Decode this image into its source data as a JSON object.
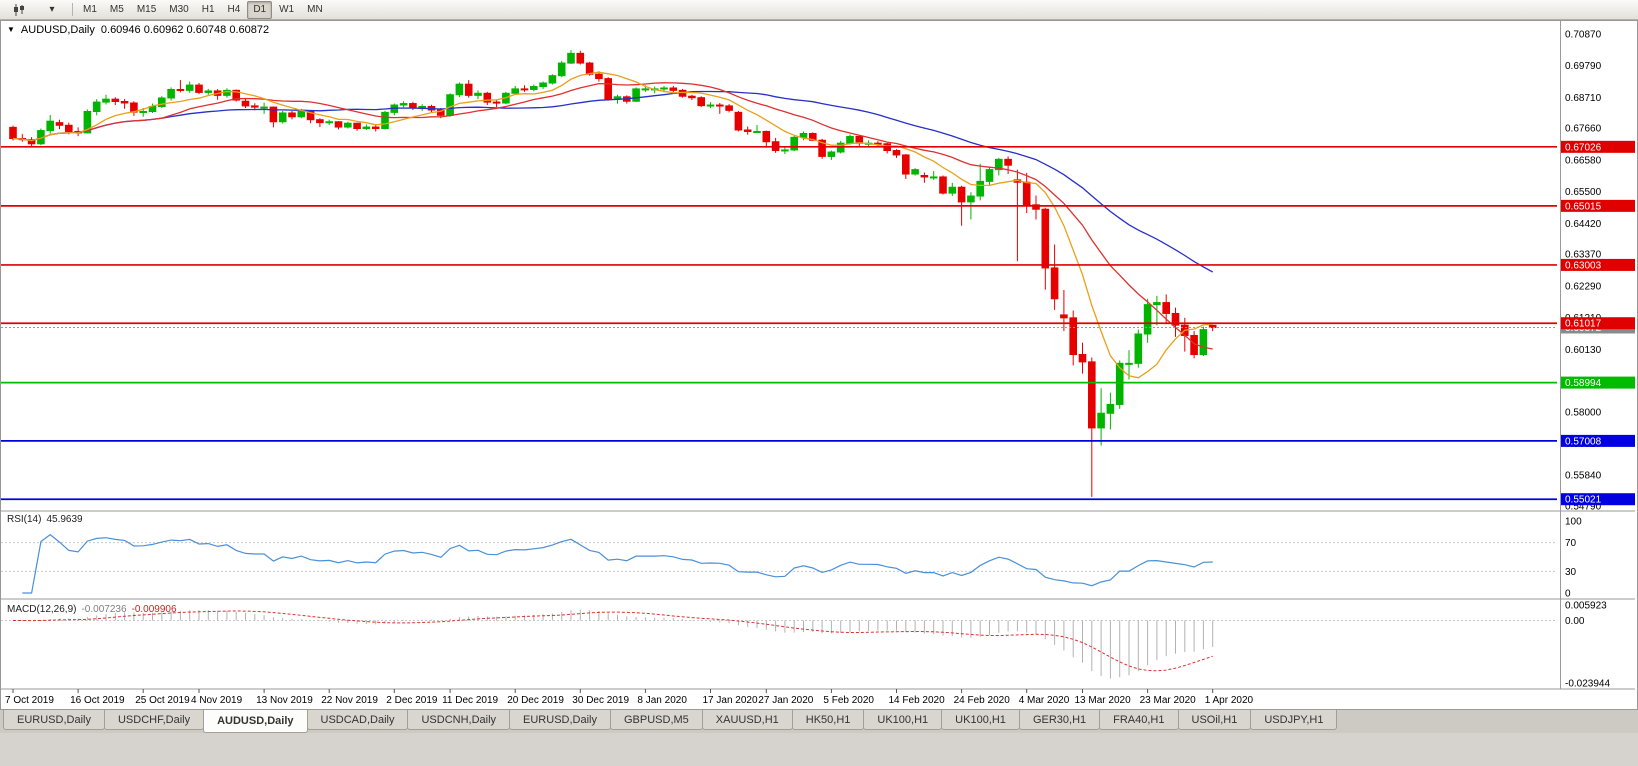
{
  "toolbar": {
    "timeframes": [
      "M1",
      "M5",
      "M15",
      "M30",
      "H1",
      "H4",
      "D1",
      "W1",
      "MN"
    ],
    "active_timeframe": "D1",
    "icons": {
      "chart_mode": "candlestick-chart-icon",
      "dropdown": "▾"
    }
  },
  "chart_title": {
    "dropdown_glyph": "▼",
    "symbol": "AUDUSD,Daily",
    "ohlc": "0.60946 0.60962 0.60748 0.60872"
  },
  "chart_data": {
    "type": "candlestick",
    "symbol": "AUDUSD",
    "timeframe": "Daily",
    "current_bar": {
      "open": "0.60946",
      "high": "0.60962",
      "low": "0.60748",
      "close": "0.60872"
    },
    "ylim": [
      0.5462,
      0.7138
    ],
    "grid": false,
    "y_axis_labels": [
      "0.70870",
      "0.69790",
      "0.68710",
      "0.67660",
      "0.66580",
      "0.65500",
      "0.64420",
      "0.63370",
      "0.62290",
      "0.61210",
      "0.60130",
      "0.59050",
      "0.58000",
      "0.56920",
      "0.55840",
      "0.54790"
    ],
    "x_labels": [
      {
        "text": "7 Oct 2019",
        "i": 0
      },
      {
        "text": "16 Oct 2019",
        "i": 7
      },
      {
        "text": "25 Oct 2019",
        "i": 14
      },
      {
        "text": "4 Nov 2019",
        "i": 20
      },
      {
        "text": "13 Nov 2019",
        "i": 27
      },
      {
        "text": "22 Nov 2019",
        "i": 34
      },
      {
        "text": "2 Dec 2019",
        "i": 41
      },
      {
        "text": "11 Dec 2019",
        "i": 47
      },
      {
        "text": "20 Dec 2019",
        "i": 54
      },
      {
        "text": "30 Dec 2019",
        "i": 61
      },
      {
        "text": "8 Jan 2020",
        "i": 68
      },
      {
        "text": "17 Jan 2020",
        "i": 75
      },
      {
        "text": "27 Jan 2020",
        "i": 81
      },
      {
        "text": "5 Feb 2020",
        "i": 88
      },
      {
        "text": "14 Feb 2020",
        "i": 95
      },
      {
        "text": "24 Feb 2020",
        "i": 102
      },
      {
        "text": "4 Mar 2020",
        "i": 109
      },
      {
        "text": "13 Mar 2020",
        "i": 115
      },
      {
        "text": "23 Mar 2020",
        "i": 122
      },
      {
        "text": "1 Apr 2020",
        "i": 129
      }
    ],
    "candles": [
      [
        0.6769,
        0.6775,
        0.6724,
        0.6731
      ],
      [
        0.6731,
        0.6746,
        0.672,
        0.6727
      ],
      [
        0.6727,
        0.6736,
        0.6704,
        0.6713
      ],
      [
        0.6713,
        0.6765,
        0.6708,
        0.6758
      ],
      [
        0.6758,
        0.6811,
        0.6747,
        0.679
      ],
      [
        0.6785,
        0.6795,
        0.6763,
        0.6776
      ],
      [
        0.6776,
        0.6785,
        0.6745,
        0.6755
      ],
      [
        0.6755,
        0.6769,
        0.6739,
        0.675
      ],
      [
        0.675,
        0.683,
        0.6748,
        0.6823
      ],
      [
        0.6823,
        0.6865,
        0.681,
        0.6855
      ],
      [
        0.6855,
        0.688,
        0.6847,
        0.6865
      ],
      [
        0.6865,
        0.6872,
        0.6845,
        0.6857
      ],
      [
        0.6857,
        0.6866,
        0.6832,
        0.6852
      ],
      [
        0.6852,
        0.6858,
        0.6808,
        0.6821
      ],
      [
        0.6821,
        0.6835,
        0.6805,
        0.6823
      ],
      [
        0.6823,
        0.685,
        0.6818,
        0.684
      ],
      [
        0.684,
        0.6875,
        0.6835,
        0.6869
      ],
      [
        0.6869,
        0.6905,
        0.686,
        0.6898
      ],
      [
        0.6898,
        0.693,
        0.6888,
        0.6895
      ],
      [
        0.6895,
        0.6925,
        0.6887,
        0.6913
      ],
      [
        0.6913,
        0.692,
        0.6882,
        0.6888
      ],
      [
        0.6888,
        0.69,
        0.688,
        0.6893
      ],
      [
        0.6893,
        0.6899,
        0.6863,
        0.6878
      ],
      [
        0.6878,
        0.6902,
        0.687,
        0.6895
      ],
      [
        0.6895,
        0.6898,
        0.6857,
        0.6862
      ],
      [
        0.6858,
        0.6868,
        0.6835,
        0.6842
      ],
      [
        0.6842,
        0.6851,
        0.6827,
        0.6838
      ],
      [
        0.6838,
        0.6853,
        0.6815,
        0.6838
      ],
      [
        0.6838,
        0.684,
        0.6769,
        0.6788
      ],
      [
        0.6788,
        0.6825,
        0.6782,
        0.6818
      ],
      [
        0.6818,
        0.6825,
        0.6796,
        0.6805
      ],
      [
        0.6805,
        0.6832,
        0.68,
        0.6823
      ],
      [
        0.6823,
        0.6827,
        0.6783,
        0.6795
      ],
      [
        0.6795,
        0.68,
        0.677,
        0.6785
      ],
      [
        0.6785,
        0.6795,
        0.6777,
        0.6788
      ],
      [
        0.6788,
        0.679,
        0.6762,
        0.677
      ],
      [
        0.677,
        0.6788,
        0.6765,
        0.6783
      ],
      [
        0.6783,
        0.6785,
        0.6757,
        0.6765
      ],
      [
        0.6765,
        0.6779,
        0.676,
        0.677
      ],
      [
        0.677,
        0.6778,
        0.6755,
        0.6765
      ],
      [
        0.6765,
        0.6825,
        0.6762,
        0.682
      ],
      [
        0.682,
        0.685,
        0.681,
        0.6845
      ],
      [
        0.6845,
        0.6858,
        0.6838,
        0.685
      ],
      [
        0.685,
        0.6856,
        0.6828,
        0.6835
      ],
      [
        0.6835,
        0.6848,
        0.6825,
        0.684
      ],
      [
        0.684,
        0.6846,
        0.682,
        0.6828
      ],
      [
        0.6828,
        0.6835,
        0.68,
        0.681
      ],
      [
        0.681,
        0.6885,
        0.6805,
        0.688
      ],
      [
        0.688,
        0.6922,
        0.6872,
        0.6916
      ],
      [
        0.6916,
        0.693,
        0.687,
        0.6878
      ],
      [
        0.6878,
        0.6895,
        0.6865,
        0.6885
      ],
      [
        0.6885,
        0.689,
        0.6845,
        0.6855
      ],
      [
        0.6855,
        0.6862,
        0.6838,
        0.6852
      ],
      [
        0.6852,
        0.689,
        0.6848,
        0.6885
      ],
      [
        0.6885,
        0.691,
        0.688,
        0.69
      ],
      [
        0.69,
        0.6912,
        0.689,
        0.6898
      ],
      [
        0.6898,
        0.6915,
        0.6892,
        0.6908
      ],
      [
        0.6908,
        0.6925,
        0.69,
        0.692
      ],
      [
        0.692,
        0.695,
        0.6915,
        0.6945
      ],
      [
        0.6945,
        0.6995,
        0.694,
        0.6988
      ],
      [
        0.6988,
        0.7032,
        0.6985,
        0.7021
      ],
      [
        0.7021,
        0.703,
        0.6983,
        0.6988
      ],
      [
        0.6988,
        0.6992,
        0.6945,
        0.695
      ],
      [
        0.695,
        0.696,
        0.6925,
        0.6935
      ],
      [
        0.6935,
        0.694,
        0.686,
        0.6865
      ],
      [
        0.6865,
        0.688,
        0.685,
        0.6873
      ],
      [
        0.6873,
        0.6878,
        0.685,
        0.6858
      ],
      [
        0.6858,
        0.6905,
        0.6855,
        0.69
      ],
      [
        0.69,
        0.6912,
        0.689,
        0.69
      ],
      [
        0.69,
        0.6908,
        0.6885,
        0.69
      ],
      [
        0.69,
        0.691,
        0.6888,
        0.6903
      ],
      [
        0.6903,
        0.691,
        0.6885,
        0.6895
      ],
      [
        0.6895,
        0.69,
        0.687,
        0.6875
      ],
      [
        0.6875,
        0.688,
        0.6862,
        0.687
      ],
      [
        0.687,
        0.6875,
        0.6838,
        0.6843
      ],
      [
        0.6843,
        0.6855,
        0.6835,
        0.6845
      ],
      [
        0.6845,
        0.6852,
        0.6815,
        0.6842
      ],
      [
        0.6842,
        0.6848,
        0.682,
        0.6827
      ],
      [
        0.682,
        0.6825,
        0.6755,
        0.676
      ],
      [
        0.676,
        0.6772,
        0.6744,
        0.6755
      ],
      [
        0.6755,
        0.6777,
        0.675,
        0.6755
      ],
      [
        0.6755,
        0.6758,
        0.67,
        0.672
      ],
      [
        0.672,
        0.6733,
        0.6682,
        0.669
      ],
      [
        0.669,
        0.6705,
        0.6678,
        0.6692
      ],
      [
        0.6692,
        0.674,
        0.6688,
        0.6735
      ],
      [
        0.6735,
        0.6755,
        0.6725,
        0.6748
      ],
      [
        0.6748,
        0.6752,
        0.6722,
        0.6725
      ],
      [
        0.6725,
        0.673,
        0.6662,
        0.667
      ],
      [
        0.667,
        0.669,
        0.6658,
        0.6685
      ],
      [
        0.6685,
        0.6723,
        0.668,
        0.6715
      ],
      [
        0.6715,
        0.6745,
        0.671,
        0.6738
      ],
      [
        0.6738,
        0.6742,
        0.6705,
        0.6715
      ],
      [
        0.6715,
        0.6725,
        0.67,
        0.6715
      ],
      [
        0.6715,
        0.6722,
        0.6705,
        0.6713
      ],
      [
        0.6713,
        0.6716,
        0.668,
        0.669
      ],
      [
        0.669,
        0.6695,
        0.6665,
        0.6675
      ],
      [
        0.6675,
        0.6678,
        0.6593,
        0.661
      ],
      [
        0.661,
        0.663,
        0.6605,
        0.6625
      ],
      [
        0.6605,
        0.6615,
        0.658,
        0.66
      ],
      [
        0.66,
        0.662,
        0.659,
        0.66
      ],
      [
        0.66,
        0.6605,
        0.654,
        0.6545
      ],
      [
        0.6545,
        0.658,
        0.6535,
        0.6565
      ],
      [
        0.6565,
        0.657,
        0.6434,
        0.6515
      ],
      [
        0.6515,
        0.6548,
        0.6455,
        0.6535
      ],
      [
        0.6535,
        0.6645,
        0.652,
        0.6585
      ],
      [
        0.6585,
        0.6635,
        0.657,
        0.6625
      ],
      [
        0.6625,
        0.6665,
        0.6605,
        0.666
      ],
      [
        0.666,
        0.667,
        0.661,
        0.664
      ],
      [
        0.659,
        0.6625,
        0.6313,
        0.6582
      ],
      [
        0.6582,
        0.6614,
        0.6477,
        0.6505
      ],
      [
        0.6505,
        0.6537,
        0.6455,
        0.649
      ],
      [
        0.649,
        0.6495,
        0.6216,
        0.629
      ],
      [
        0.629,
        0.637,
        0.6147,
        0.6185
      ],
      [
        0.613,
        0.6215,
        0.6075,
        0.612
      ],
      [
        0.612,
        0.6145,
        0.5958,
        0.5995
      ],
      [
        0.5995,
        0.6035,
        0.593,
        0.597
      ],
      [
        0.597,
        0.5985,
        0.551,
        0.5745
      ],
      [
        0.5745,
        0.588,
        0.5685,
        0.5795
      ],
      [
        0.5795,
        0.5865,
        0.574,
        0.5825
      ],
      [
        0.5825,
        0.5975,
        0.581,
        0.5965
      ],
      [
        0.5965,
        0.601,
        0.591,
        0.5965
      ],
      [
        0.5965,
        0.608,
        0.595,
        0.6065
      ],
      [
        0.6065,
        0.6185,
        0.6035,
        0.6165
      ],
      [
        0.6165,
        0.6195,
        0.6095,
        0.6172
      ],
      [
        0.6172,
        0.62,
        0.61,
        0.6135
      ],
      [
        0.6135,
        0.6155,
        0.6055,
        0.6095
      ],
      [
        0.6095,
        0.612,
        0.6005,
        0.606
      ],
      [
        0.606,
        0.6075,
        0.5982,
        0.5995
      ],
      [
        0.5995,
        0.609,
        0.599,
        0.608
      ],
      [
        0.60946,
        0.60962,
        0.60748,
        0.60872
      ]
    ],
    "up_color": "#00b400",
    "down_color": "#e60000",
    "horizontal_lines": [
      {
        "price": 0.67026,
        "label": "0.67026",
        "color": "#e00000"
      },
      {
        "price": 0.65015,
        "label": "0.65015",
        "color": "#e00000"
      },
      {
        "price": 0.63003,
        "label": "0.63003",
        "color": "#e00000"
      },
      {
        "price": 0.61017,
        "label": "0.61017",
        "color": "#e00000"
      },
      {
        "price": 0.58994,
        "label": "0.58994",
        "color": "#00bb00"
      },
      {
        "price": 0.57008,
        "label": "0.57008",
        "color": "#0000e0"
      },
      {
        "price": 0.55021,
        "label": "0.55021",
        "color": "#0000e0"
      }
    ],
    "current_price": {
      "price": 0.60872,
      "label": "0.60872",
      "color": "#8a8a8a"
    },
    "moving_averages": [
      {
        "name": "ma-slow",
        "period": 34,
        "color": "#2830c8"
      },
      {
        "name": "ma-medium",
        "period": 17,
        "color": "#e03030"
      },
      {
        "name": "ma-fast",
        "period": 8,
        "color": "#eaa018"
      }
    ],
    "rsi": {
      "label": "RSI(14)",
      "value": "45.9639",
      "period": 14,
      "color": "#4a90d9",
      "levels": [
        70,
        30
      ],
      "axis_labels": [
        "100",
        "70",
        "30",
        "0"
      ],
      "range": [
        0,
        100
      ]
    },
    "macd": {
      "label": "MACD(12,26,9)",
      "main_value": "-0.007236",
      "signal_value": "-0.009906",
      "axis_labels": [
        "0.005923",
        "0.00",
        "-0.023944"
      ],
      "range": [
        -0.023944,
        0.005923
      ],
      "histogram_color": "#b2b2b2",
      "signal_color": "#e03030"
    }
  },
  "tabs": {
    "items": [
      "EURUSD,Daily",
      "USDCHF,Daily",
      "AUDUSD,Daily",
      "USDCAD,Daily",
      "USDCNH,Daily",
      "EURUSD,Daily",
      "GBPUSD,M5",
      "XAUUSD,H1",
      "HK50,H1",
      "UK100,H1",
      "UK100,H1",
      "GER30,H1",
      "FRA40,H1",
      "USOil,H1",
      "USDJPY,H1"
    ],
    "active_index": 2
  }
}
